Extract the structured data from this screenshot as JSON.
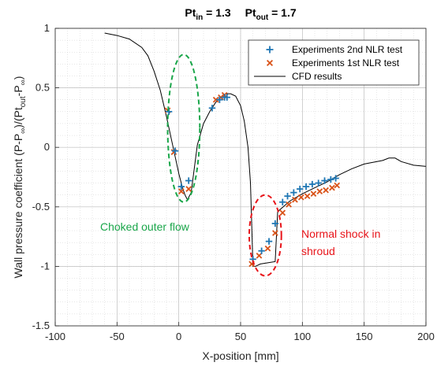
{
  "chart_data": {
    "type": "line",
    "title": {
      "a_main": "Pt",
      "a_sub": "in",
      "a_rest": " = 1.3",
      "b_main": "Pt",
      "b_sub": "out",
      "b_rest": " = 1.7"
    },
    "xlabel": "X-position [mm]",
    "ylabel": {
      "p1": "Wall pressure coefficient (P-P",
      "s1": "∞",
      "p2": ")/(Pt",
      "s2": "out",
      "p3": "-P",
      "s3": "∞",
      "p4": ")"
    },
    "xlim": [
      -100,
      200
    ],
    "ylim": [
      -1.5,
      1
    ],
    "xticks": [
      -100,
      -50,
      0,
      50,
      100,
      150,
      200
    ],
    "yticks": [
      -1.5,
      -1,
      -0.5,
      0,
      0.5,
      1
    ],
    "grid": true,
    "legend_position": "top-right",
    "series": [
      {
        "name": "Experiments 2nd NLR test",
        "marker": "+",
        "color": "#1f77b4",
        "points": [
          [
            -8,
            0.3
          ],
          [
            -3,
            -0.03
          ],
          [
            2,
            -0.33
          ],
          [
            8,
            -0.28
          ],
          [
            27,
            0.33
          ],
          [
            33,
            0.4
          ],
          [
            37,
            0.42
          ],
          [
            39,
            0.42
          ],
          [
            60,
            -0.94
          ],
          [
            67,
            -0.87
          ],
          [
            73,
            -0.79
          ],
          [
            78,
            -0.64
          ],
          [
            84,
            -0.46
          ],
          [
            88,
            -0.41
          ],
          [
            93,
            -0.38
          ],
          [
            98,
            -0.35
          ],
          [
            103,
            -0.33
          ],
          [
            108,
            -0.31
          ],
          [
            113,
            -0.3
          ],
          [
            118,
            -0.28
          ],
          [
            123,
            -0.27
          ],
          [
            127,
            -0.26
          ]
        ]
      },
      {
        "name": "Experiments 1st NLR test",
        "marker": "x",
        "color": "#d95319",
        "points": [
          [
            -9,
            0.31
          ],
          [
            -4,
            -0.04
          ],
          [
            2,
            -0.37
          ],
          [
            8,
            -0.35
          ],
          [
            30,
            0.4
          ],
          [
            34,
            0.42
          ],
          [
            37,
            0.44
          ],
          [
            59,
            -0.98
          ],
          [
            65,
            -0.91
          ],
          [
            72,
            -0.85
          ],
          [
            78,
            -0.72
          ],
          [
            84,
            -0.55
          ],
          [
            89,
            -0.48
          ],
          [
            94,
            -0.44
          ],
          [
            99,
            -0.42
          ],
          [
            104,
            -0.41
          ],
          [
            109,
            -0.39
          ],
          [
            114,
            -0.37
          ],
          [
            119,
            -0.36
          ],
          [
            124,
            -0.34
          ],
          [
            128,
            -0.32
          ]
        ]
      },
      {
        "name": "CFD results",
        "marker": "line",
        "color": "#000000",
        "points": [
          [
            -60,
            0.96
          ],
          [
            -50,
            0.94
          ],
          [
            -40,
            0.91
          ],
          [
            -30,
            0.84
          ],
          [
            -25,
            0.77
          ],
          [
            -20,
            0.64
          ],
          [
            -15,
            0.48
          ],
          [
            -10,
            0.26
          ],
          [
            -5,
            0.02
          ],
          [
            0,
            -0.22
          ],
          [
            3,
            -0.34
          ],
          [
            5,
            -0.4
          ],
          [
            7,
            -0.44
          ],
          [
            10,
            -0.38
          ],
          [
            12,
            -0.22
          ],
          [
            15,
            0.02
          ],
          [
            20,
            0.2
          ],
          [
            25,
            0.3
          ],
          [
            30,
            0.38
          ],
          [
            35,
            0.43
          ],
          [
            38,
            0.45
          ],
          [
            42,
            0.45
          ],
          [
            46,
            0.43
          ],
          [
            50,
            0.35
          ],
          [
            53,
            0.22
          ],
          [
            56,
            0.0
          ],
          [
            58,
            -0.3
          ],
          [
            60,
            -1.0
          ],
          [
            62,
            -1.0
          ],
          [
            66,
            -0.98
          ],
          [
            72,
            -0.97
          ],
          [
            78,
            -0.96
          ],
          [
            80,
            -0.54
          ],
          [
            90,
            -0.45
          ],
          [
            100,
            -0.39
          ],
          [
            110,
            -0.34
          ],
          [
            120,
            -0.29
          ],
          [
            130,
            -0.23
          ],
          [
            140,
            -0.18
          ],
          [
            150,
            -0.14
          ],
          [
            160,
            -0.12
          ],
          [
            165,
            -0.11
          ],
          [
            170,
            -0.09
          ],
          [
            175,
            -0.09
          ],
          [
            180,
            -0.12
          ],
          [
            190,
            -0.15
          ],
          [
            200,
            -0.16
          ]
        ]
      }
    ],
    "annotations": [
      {
        "id": "choked",
        "text": "Choked outer flow",
        "color": "#1aa64a",
        "ellipse": {
          "cx": 4,
          "cy": 0.16,
          "rx": 13,
          "ry": 0.62
        }
      },
      {
        "id": "shock",
        "text_lines": [
          "Normal shock in",
          "shroud"
        ],
        "color": "#e8141a",
        "ellipse": {
          "cx": 70,
          "cy": -0.74,
          "rx": 13,
          "ry": 0.34
        }
      }
    ]
  }
}
